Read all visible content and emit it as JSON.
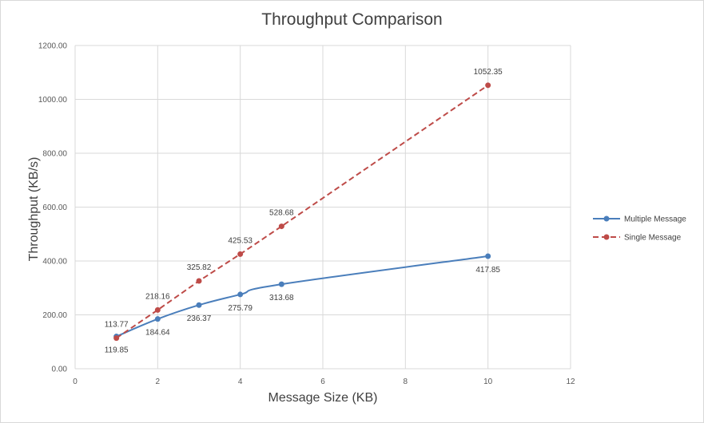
{
  "chart_data": {
    "type": "line",
    "title": "Throughput Comparison",
    "xlabel": "Message Size (KB)",
    "ylabel": "Throughput (KB/s)",
    "xlim": [
      0,
      12
    ],
    "ylim": [
      0,
      1200
    ],
    "x_ticks": [
      "0",
      "2",
      "4",
      "6",
      "8",
      "10",
      "12"
    ],
    "y_ticks": [
      "0.00",
      "200.00",
      "400.00",
      "600.00",
      "800.00",
      "1000.00",
      "1200.00"
    ],
    "grid": true,
    "legend_position": "right",
    "series": [
      {
        "name": "Multiple Message",
        "color": "#4a7ebb",
        "style": "solid",
        "x": [
          1,
          2,
          3,
          4,
          5,
          10
        ],
        "y": [
          119.85,
          184.64,
          236.37,
          275.79,
          313.68,
          417.85
        ],
        "labels": [
          "119.85",
          "184.64",
          "236.37",
          "275.79",
          "313.68",
          "417.85"
        ],
        "label_position": "below"
      },
      {
        "name": "Single Message",
        "color": "#be4b48",
        "style": "dashed",
        "x": [
          1,
          2,
          3,
          4,
          5,
          10
        ],
        "y": [
          113.77,
          218.16,
          325.82,
          425.53,
          528.68,
          1052.35
        ],
        "labels": [
          "113.77",
          "218.16",
          "325.82",
          "425.53",
          "528.68",
          "1052.35"
        ],
        "label_position": "above"
      }
    ]
  }
}
